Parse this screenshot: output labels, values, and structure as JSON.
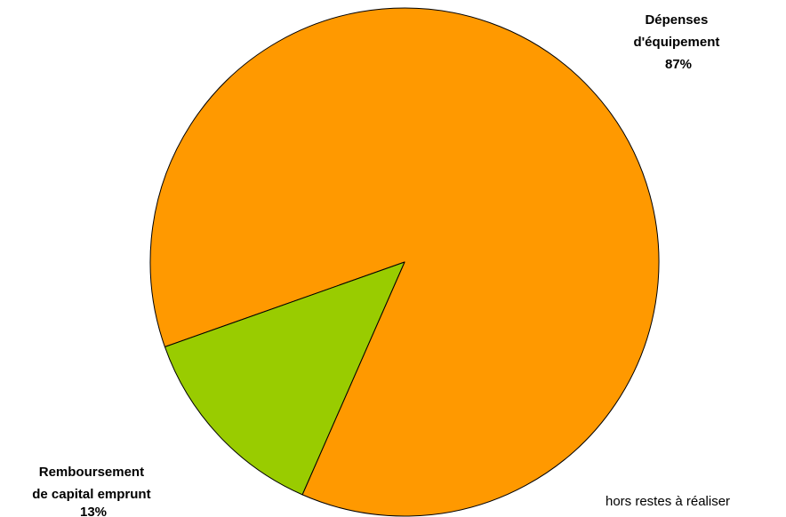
{
  "chart_data": {
    "type": "pie",
    "categories": [
      "Dépenses d'équipement",
      "Remboursement de capital emprunt"
    ],
    "values": [
      87,
      13
    ],
    "percent_labels": [
      "87%",
      "13%"
    ],
    "label_lines": [
      [
        "Dépenses",
        "d'équipement"
      ],
      [
        "Remboursement",
        "de capital emprunt"
      ]
    ],
    "colors": [
      "#ff9900",
      "#99cc00"
    ],
    "title": "",
    "legend": "none"
  },
  "footnote": "hors restes à réaliser"
}
